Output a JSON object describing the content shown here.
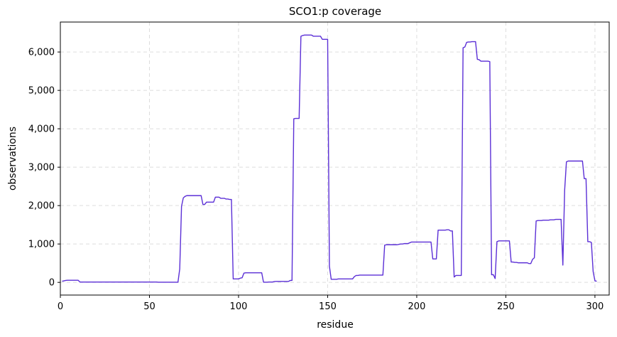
{
  "chart_data": {
    "type": "line",
    "title": "SCO1:p coverage",
    "xlabel": "residue",
    "ylabel": "observations",
    "xlim": [
      0,
      308
    ],
    "ylim": [
      -330,
      6780
    ],
    "xticks": [
      0,
      50,
      100,
      150,
      200,
      250,
      300
    ],
    "yticks": [
      0,
      1000,
      2000,
      3000,
      4000,
      5000,
      6000
    ],
    "ytick_labels": [
      "0",
      "1,000",
      "2,000",
      "3,000",
      "4,000",
      "5,000",
      "6,000"
    ],
    "grid": true,
    "line_color": "#5b2fd6",
    "series": [
      {
        "x": [
          1,
          2,
          3,
          4,
          5,
          6,
          7,
          8,
          9,
          10,
          11,
          12,
          13,
          14,
          15,
          16,
          17,
          18,
          19,
          20,
          21,
          22,
          23,
          24,
          25,
          26,
          27,
          28,
          29,
          30,
          31,
          32,
          33,
          34,
          35,
          36,
          37,
          38,
          39,
          40,
          41,
          42,
          43,
          44,
          45,
          46,
          47,
          48,
          49,
          50,
          51,
          52,
          53,
          54,
          55,
          56,
          57,
          58,
          59,
          60,
          61,
          62,
          63,
          64,
          65,
          66,
          67,
          68,
          69,
          70,
          71,
          72,
          73,
          74,
          75,
          76,
          77,
          78,
          79,
          80,
          81,
          82,
          83,
          84,
          85,
          86,
          87,
          88,
          89,
          90,
          91,
          92,
          93,
          94,
          95,
          96,
          97,
          98,
          99,
          100,
          101,
          102,
          103,
          104,
          105,
          106,
          107,
          108,
          109,
          110,
          111,
          112,
          113,
          114,
          115,
          116,
          117,
          118,
          119,
          120,
          121,
          122,
          123,
          124,
          125,
          126,
          127,
          128,
          129,
          130,
          131,
          132,
          133,
          134,
          135,
          136,
          137,
          138,
          139,
          140,
          141,
          142,
          143,
          144,
          145,
          146,
          147,
          148,
          149,
          150,
          151,
          152,
          153,
          154,
          155,
          156,
          157,
          158,
          159,
          160,
          161,
          162,
          163,
          164,
          165,
          166,
          167,
          168,
          169,
          170,
          171,
          172,
          173,
          174,
          175,
          176,
          177,
          178,
          179,
          180,
          181,
          182,
          183,
          184,
          185,
          186,
          187,
          188,
          189,
          190,
          191,
          192,
          193,
          194,
          195,
          196,
          197,
          198,
          199,
          200,
          201,
          202,
          203,
          204,
          205,
          206,
          207,
          208,
          209,
          210,
          211,
          212,
          213,
          214,
          215,
          216,
          217,
          218,
          219,
          220,
          221,
          222,
          223,
          224,
          225,
          226,
          227,
          228,
          229,
          230,
          231,
          232,
          233,
          234,
          235,
          236,
          237,
          238,
          239,
          240,
          241,
          242,
          243,
          244,
          245,
          246,
          247,
          248,
          249,
          250,
          251,
          252,
          253,
          254,
          255,
          256,
          257,
          258,
          259,
          260,
          261,
          262,
          263,
          264,
          265,
          266,
          267,
          268,
          269,
          270,
          271,
          272,
          273,
          274,
          275,
          276,
          277,
          278,
          279,
          280,
          281,
          282,
          283,
          284,
          285,
          286,
          287,
          288,
          289,
          290,
          291,
          292,
          293,
          294,
          295,
          296,
          297,
          298,
          299,
          300,
          301
        ],
        "values": [
          30,
          40,
          50,
          55,
          55,
          55,
          55,
          55,
          55,
          55,
          10,
          10,
          10,
          10,
          10,
          10,
          10,
          10,
          10,
          10,
          10,
          10,
          10,
          10,
          10,
          10,
          10,
          10,
          10,
          10,
          10,
          10,
          10,
          10,
          10,
          10,
          10,
          10,
          10,
          10,
          10,
          10,
          10,
          10,
          10,
          10,
          10,
          10,
          10,
          10,
          10,
          10,
          10,
          10,
          5,
          5,
          5,
          5,
          5,
          5,
          5,
          5,
          5,
          5,
          5,
          5,
          350,
          1980,
          2200,
          2240,
          2260,
          2260,
          2260,
          2260,
          2260,
          2260,
          2260,
          2260,
          2260,
          2030,
          2030,
          2090,
          2090,
          2090,
          2090,
          2090,
          2220,
          2220,
          2220,
          2190,
          2190,
          2190,
          2170,
          2170,
          2160,
          2160,
          90,
          90,
          90,
          90,
          110,
          120,
          240,
          250,
          250,
          250,
          250,
          250,
          250,
          250,
          250,
          250,
          250,
          5,
          5,
          5,
          10,
          10,
          10,
          20,
          25,
          25,
          25,
          25,
          25,
          25,
          25,
          25,
          50,
          50,
          4260,
          4270,
          4270,
          4270,
          6410,
          6430,
          6440,
          6440,
          6440,
          6440,
          6440,
          6410,
          6410,
          6410,
          6410,
          6410,
          6330,
          6330,
          6330,
          6330,
          420,
          80,
          80,
          80,
          80,
          90,
          90,
          90,
          90,
          90,
          90,
          90,
          90,
          90,
          150,
          180,
          180,
          190,
          190,
          190,
          190,
          190,
          190,
          190,
          190,
          190,
          190,
          190,
          190,
          190,
          190,
          970,
          980,
          980,
          980,
          980,
          980,
          980,
          980,
          990,
          1000,
          1000,
          1010,
          1010,
          1010,
          1030,
          1050,
          1050,
          1050,
          1050,
          1050,
          1050,
          1050,
          1050,
          1050,
          1050,
          1050,
          1050,
          610,
          610,
          610,
          1360,
          1360,
          1360,
          1360,
          1360,
          1370,
          1370,
          1340,
          1340,
          140,
          180,
          180,
          180,
          180,
          6110,
          6130,
          6250,
          6260,
          6260,
          6270,
          6270,
          6270,
          5810,
          5800,
          5760,
          5760,
          5760,
          5760,
          5760,
          5750,
          200,
          200,
          100,
          1060,
          1080,
          1080,
          1080,
          1080,
          1080,
          1080,
          1080,
          530,
          530,
          520,
          520,
          510,
          510,
          510,
          510,
          510,
          510,
          490,
          490,
          600,
          640,
          1600,
          1610,
          1610,
          1610,
          1620,
          1620,
          1620,
          1620,
          1630,
          1630,
          1630,
          1640,
          1640,
          1640,
          1640,
          450,
          2400,
          3140,
          3160,
          3160,
          3160,
          3160,
          3160,
          3160,
          3160,
          3160,
          3160,
          2700,
          2700,
          1060,
          1060,
          1040,
          280,
          40,
          30
        ]
      }
    ]
  }
}
